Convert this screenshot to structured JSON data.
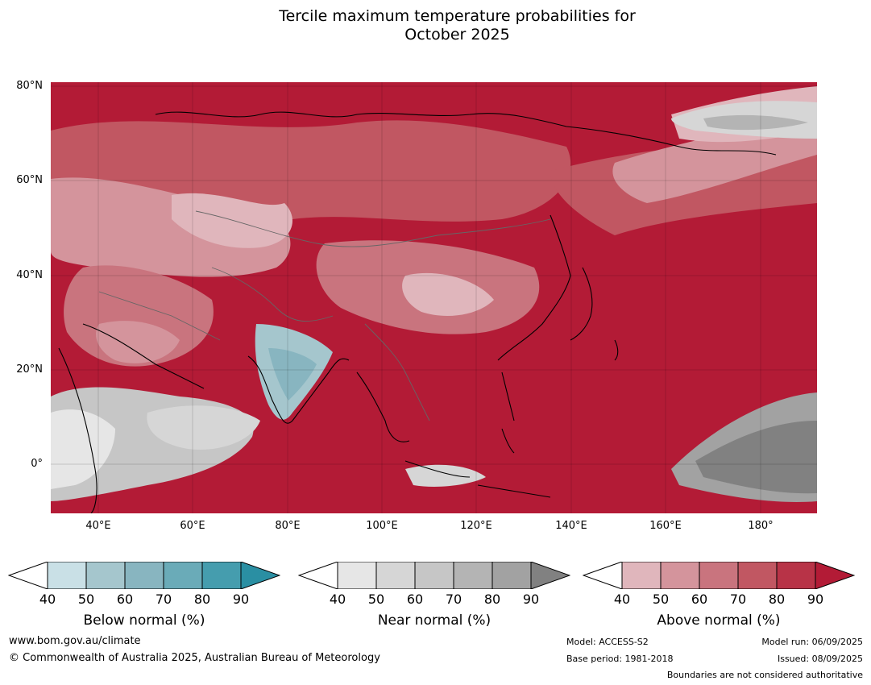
{
  "title_line1": "Tercile maximum temperature probabilities for",
  "title_line2": "October 2025",
  "map": {
    "lat_labels": [
      "80°N",
      "60°N",
      "40°N",
      "20°N",
      "0°"
    ],
    "lon_labels": [
      "40°E",
      "60°E",
      "80°E",
      "100°E",
      "120°E",
      "140°E",
      "160°E",
      "180°"
    ],
    "base_color": "#b31b36"
  },
  "colorbars": [
    {
      "label": "Below normal (%)",
      "ticks": [
        "40",
        "50",
        "60",
        "70",
        "80",
        "90"
      ],
      "colors": [
        "#c9e0e6",
        "#a5c6cd",
        "#88b5c0",
        "#6aabb8",
        "#459dae",
        "#2a8fa3"
      ]
    },
    {
      "label": "Near normal (%)",
      "ticks": [
        "40",
        "50",
        "60",
        "70",
        "80",
        "90"
      ],
      "colors": [
        "#e6e6e6",
        "#d6d6d6",
        "#c6c6c6",
        "#b4b4b4",
        "#a2a2a2",
        "#818181"
      ]
    },
    {
      "label": "Above normal (%)",
      "ticks": [
        "40",
        "50",
        "60",
        "70",
        "80",
        "90"
      ],
      "colors": [
        "#e0b6bc",
        "#d4949c",
        "#c9747e",
        "#c15762",
        "#b83347",
        "#b31b36"
      ]
    }
  ],
  "footer": {
    "url": "www.bom.gov.au/climate",
    "copyright": "© Commonwealth of Australia 2025, Australian Bureau of Meteorology",
    "model": "Model: ACCESS-S2",
    "base_period": "Base period: 1981-2018",
    "model_run": "Model run: 06/09/2025",
    "issued": "Issued: 08/09/2025",
    "disclaimer": "Boundaries are not considered authoritative"
  }
}
